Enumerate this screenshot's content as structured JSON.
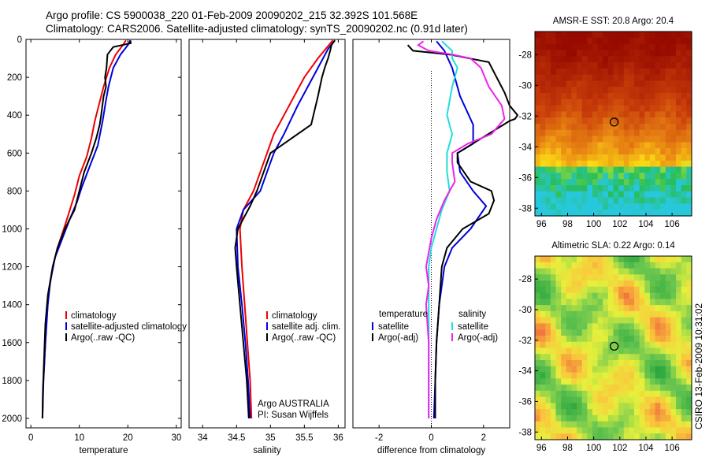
{
  "header": {
    "line1": "Argo profile: CS 5900038_220 01-Feb-2009 20090202_215 32.392S 101.568E",
    "line2": "Climatology: CARS2006. Satellite-adjusted climatology: synTS_20090202.nc (0.91d later)"
  },
  "side_credit": "CSIRO 13-Feb-2009 10:31:02",
  "colors": {
    "climatology": "#ee0000",
    "satellite": "#0000dd",
    "argo": "#000000",
    "sal_satellite": "#22dddd",
    "sal_argo": "#ee22ee"
  },
  "chart_data": [
    {
      "id": "temperature",
      "type": "line",
      "xlabel": "temperature",
      "ylabel": "",
      "xlim": [
        -1,
        31
      ],
      "ylim": [
        2050,
        0
      ],
      "y_inverted": true,
      "xticks": [
        0,
        10,
        20,
        30
      ],
      "yticks": [
        0,
        200,
        400,
        600,
        800,
        1000,
        1200,
        1400,
        1600,
        1800,
        2000
      ],
      "legend": [
        "climatology",
        "satellite-adjusted climatology",
        "Argo(..raw -QC)"
      ],
      "series": [
        {
          "name": "climatology",
          "color": "#ee0000",
          "points": [
            [
              19.6,
              5
            ],
            [
              19.0,
              30
            ],
            [
              17.5,
              80
            ],
            [
              16.2,
              150
            ],
            [
              15.0,
              250
            ],
            [
              14.0,
              350
            ],
            [
              13.2,
              430
            ],
            [
              12.5,
              520
            ],
            [
              11.5,
              620
            ],
            [
              10.0,
              720
            ],
            [
              9.0,
              820
            ],
            [
              7.8,
              920
            ],
            [
              6.8,
              1000
            ],
            [
              5.5,
              1100
            ],
            [
              4.5,
              1200
            ],
            [
              3.6,
              1350
            ],
            [
              3.2,
              1500
            ],
            [
              2.8,
              1700
            ],
            [
              2.5,
              1850
            ],
            [
              2.4,
              2000
            ]
          ]
        },
        {
          "name": "satellite-adjusted climatology",
          "color": "#0000dd",
          "points": [
            [
              20.5,
              5
            ],
            [
              20.0,
              30
            ],
            [
              18.5,
              80
            ],
            [
              17.0,
              150
            ],
            [
              16.5,
              200
            ],
            [
              16.0,
              250
            ],
            [
              15.5,
              320
            ],
            [
              14.8,
              430
            ],
            [
              13.8,
              560
            ],
            [
              12.0,
              680
            ],
            [
              10.5,
              780
            ],
            [
              9.5,
              860
            ],
            [
              8.0,
              950
            ],
            [
              6.5,
              1050
            ],
            [
              5.0,
              1150
            ],
            [
              4.0,
              1280
            ],
            [
              3.5,
              1400
            ],
            [
              3.0,
              1600
            ],
            [
              2.6,
              1800
            ],
            [
              2.4,
              2000
            ]
          ]
        },
        {
          "name": "Argo(..raw -QC)",
          "color": "#000000",
          "points": [
            [
              20.5,
              5
            ],
            [
              20.6,
              20
            ],
            [
              17.0,
              40
            ],
            [
              15.8,
              80
            ],
            [
              15.6,
              150
            ],
            [
              15.3,
              200
            ],
            [
              15.5,
              250
            ],
            [
              15.0,
              300
            ],
            [
              14.5,
              400
            ],
            [
              14.2,
              450
            ],
            [
              13.5,
              520
            ],
            [
              12.5,
              600
            ],
            [
              11.0,
              700
            ],
            [
              10.0,
              800
            ],
            [
              9.0,
              900
            ],
            [
              7.0,
              1000
            ],
            [
              5.5,
              1100
            ],
            [
              4.5,
              1200
            ],
            [
              3.5,
              1350
            ],
            [
              3.0,
              1500
            ],
            [
              2.7,
              1700
            ],
            [
              2.5,
              1850
            ],
            [
              2.4,
              2000
            ]
          ]
        }
      ]
    },
    {
      "id": "salinity",
      "type": "line",
      "xlabel": "salinity",
      "ylabel": "",
      "xlim": [
        33.8,
        36.1
      ],
      "ylim": [
        2050,
        0
      ],
      "y_inverted": true,
      "xticks": [
        34,
        34.5,
        35,
        35.5,
        36
      ],
      "xticklabels": [
        "34",
        "34.5",
        "35",
        "35.5",
        "36"
      ],
      "legend": [
        "climatology",
        "satellite adj. clim.",
        "Argo(..raw -QC)"
      ],
      "annotation": [
        "Argo AUSTRALIA",
        "PI: Susan Wijffels"
      ],
      "series": [
        {
          "name": "climatology",
          "color": "#ee0000",
          "points": [
            [
              35.92,
              5
            ],
            [
              35.7,
              100
            ],
            [
              35.5,
              200
            ],
            [
              35.35,
              300
            ],
            [
              35.2,
              400
            ],
            [
              35.05,
              500
            ],
            [
              34.95,
              600
            ],
            [
              34.85,
              700
            ],
            [
              34.75,
              800
            ],
            [
              34.6,
              900
            ],
            [
              34.55,
              1000
            ],
            [
              34.58,
              1200
            ],
            [
              34.62,
              1400
            ],
            [
              34.66,
              1600
            ],
            [
              34.7,
              1800
            ],
            [
              34.72,
              2000
            ]
          ]
        },
        {
          "name": "satellite adj. clim.",
          "color": "#0000dd",
          "points": [
            [
              35.95,
              5
            ],
            [
              35.85,
              50
            ],
            [
              35.7,
              150
            ],
            [
              35.55,
              250
            ],
            [
              35.4,
              350
            ],
            [
              35.2,
              500
            ],
            [
              35.05,
              600
            ],
            [
              34.95,
              700
            ],
            [
              34.85,
              800
            ],
            [
              34.6,
              900
            ],
            [
              34.5,
              1000
            ],
            [
              34.52,
              1200
            ],
            [
              34.58,
              1400
            ],
            [
              34.63,
              1600
            ],
            [
              34.67,
              1800
            ],
            [
              34.7,
              2000
            ]
          ]
        },
        {
          "name": "Argo(..raw -QC)",
          "color": "#000000",
          "points": [
            [
              35.95,
              5
            ],
            [
              35.9,
              30
            ],
            [
              35.88,
              60
            ],
            [
              35.85,
              100
            ],
            [
              35.8,
              150
            ],
            [
              35.76,
              200
            ],
            [
              35.7,
              300
            ],
            [
              35.6,
              450
            ],
            [
              35.2,
              550
            ],
            [
              35.0,
              600
            ],
            [
              34.9,
              700
            ],
            [
              34.8,
              800
            ],
            [
              34.7,
              880
            ],
            [
              34.52,
              1000
            ],
            [
              34.48,
              1100
            ],
            [
              34.5,
              1200
            ],
            [
              34.55,
              1400
            ],
            [
              34.6,
              1600
            ],
            [
              34.65,
              1800
            ],
            [
              34.68,
              2000
            ]
          ]
        }
      ]
    },
    {
      "id": "difference",
      "type": "line",
      "xlabel": "difference from climatology",
      "ylabel": "",
      "xlim": [
        -3,
        3
      ],
      "ylim": [
        2050,
        0
      ],
      "y_inverted": true,
      "xticks": [
        -2,
        0,
        2
      ],
      "legend": [
        "temperature",
        "satellite",
        "Argo(-adj)",
        "salinity",
        "satellite",
        "Argo(-adj)"
      ],
      "series": [
        {
          "name": "satellite",
          "group": "temperature",
          "color": "#0000dd",
          "points": [
            [
              0.2,
              10
            ],
            [
              0.5,
              60
            ],
            [
              0.8,
              150
            ],
            [
              1.1,
              300
            ],
            [
              1.6,
              450
            ],
            [
              1.6,
              550
            ],
            [
              1.0,
              600
            ],
            [
              1.1,
              700
            ],
            [
              1.6,
              800
            ],
            [
              2.1,
              880
            ],
            [
              1.5,
              1000
            ],
            [
              0.8,
              1100
            ],
            [
              0.5,
              1200
            ],
            [
              0.3,
              1400
            ],
            [
              0.2,
              1600
            ],
            [
              0.15,
              1800
            ],
            [
              0.1,
              2000
            ]
          ]
        },
        {
          "name": "Argo(-adj)",
          "group": "temperature",
          "color": "#000000",
          "points": [
            [
              -0.9,
              30
            ],
            [
              -0.7,
              60
            ],
            [
              0.7,
              80
            ],
            [
              2.2,
              120
            ],
            [
              2.5,
              200
            ],
            [
              2.8,
              280
            ],
            [
              3.0,
              350
            ],
            [
              3.3,
              400
            ],
            [
              3.2,
              420
            ],
            [
              3.0,
              430
            ],
            [
              1.0,
              600
            ],
            [
              1.0,
              650
            ],
            [
              1.5,
              750
            ],
            [
              2.3,
              800
            ],
            [
              2.4,
              850
            ],
            [
              2.2,
              920
            ],
            [
              1.2,
              1000
            ],
            [
              0.6,
              1100
            ],
            [
              0.4,
              1200
            ],
            [
              0.3,
              1400
            ],
            [
              0.2,
              1600
            ],
            [
              0.15,
              1800
            ],
            [
              0.15,
              2000
            ]
          ]
        },
        {
          "name": "satellite",
          "group": "salinity",
          "color": "#22dddd",
          "points": [
            [
              0.4,
              10
            ],
            [
              0.8,
              60
            ],
            [
              0.8,
              100
            ],
            [
              1.0,
              150
            ],
            [
              0.8,
              250
            ],
            [
              0.6,
              400
            ],
            [
              0.8,
              500
            ],
            [
              0.6,
              600
            ],
            [
              0.6,
              700
            ],
            [
              0.7,
              800
            ],
            [
              0.4,
              900
            ],
            [
              0.2,
              1000
            ],
            [
              0.0,
              1100
            ],
            [
              -0.1,
              1200
            ],
            [
              -0.1,
              1400
            ],
            [
              -0.1,
              1600
            ],
            [
              -0.1,
              1800
            ],
            [
              -0.1,
              2000
            ]
          ]
        },
        {
          "name": "Argo(-adj)",
          "group": "salinity",
          "color": "#ee22ee",
          "points": [
            [
              -0.3,
              10
            ],
            [
              -0.5,
              30
            ],
            [
              -0.1,
              60
            ],
            [
              0.8,
              80
            ],
            [
              1.5,
              100
            ],
            [
              1.9,
              150
            ],
            [
              2.2,
              250
            ],
            [
              2.7,
              350
            ],
            [
              2.8,
              420
            ],
            [
              2.3,
              500
            ],
            [
              1.4,
              550
            ],
            [
              0.8,
              600
            ],
            [
              0.8,
              650
            ],
            [
              0.9,
              750
            ],
            [
              0.7,
              800
            ],
            [
              0.5,
              850
            ],
            [
              0.2,
              950
            ],
            [
              0.0,
              1050
            ],
            [
              -0.2,
              1200
            ],
            [
              -0.1,
              1300
            ],
            [
              -0.2,
              1400
            ],
            [
              -0.1,
              1600
            ],
            [
              -0.1,
              2000
            ]
          ]
        }
      ]
    },
    {
      "id": "sst_map",
      "type": "heatmap",
      "title": "AMSR-E SST: 20.8  Argo: 20.4",
      "xlim": [
        95.5,
        107.5
      ],
      "ylim": [
        -38.5,
        -26.5
      ],
      "xticks": [
        96,
        98,
        100,
        102,
        104,
        106
      ],
      "yticks": [
        -28,
        -30,
        -32,
        -34,
        -36,
        -38
      ],
      "marker": [
        101.568,
        -32.392
      ]
    },
    {
      "id": "sla_map",
      "type": "heatmap",
      "title": "Altimetric SLA: 0.22  Argo: 0.14",
      "xlim": [
        95.5,
        107.5
      ],
      "ylim": [
        -38.5,
        -26.5
      ],
      "xticks": [
        96,
        98,
        100,
        102,
        104,
        106
      ],
      "yticks": [
        -28,
        -30,
        -32,
        -34,
        -36,
        -38
      ],
      "marker": [
        101.568,
        -32.392
      ]
    }
  ]
}
